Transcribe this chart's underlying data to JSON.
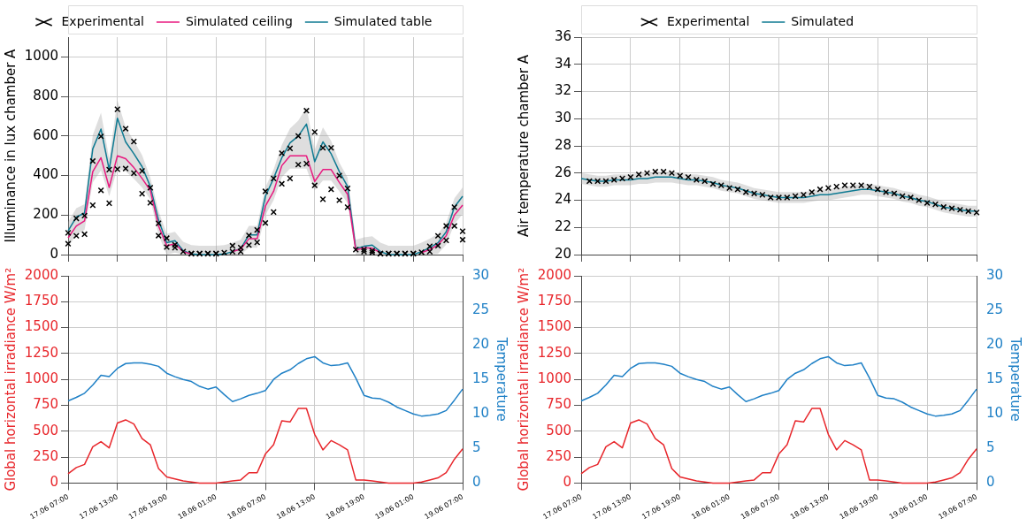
{
  "chart_data": [
    {
      "type": "line",
      "ylabel": "Illuminance in lux chamber A",
      "legend": "top",
      "grid": true,
      "tick_labels": "y",
      "x": [
        "--06-17T07:00",
        "--06-17T08:00",
        "--06-17T09:00",
        "--06-17T10:00",
        "--06-17T11:00",
        "--06-17T12:00",
        "--06-17T13:00",
        "--06-17T14:00",
        "--06-17T15:00",
        "--06-17T16:00",
        "--06-17T17:00",
        "--06-17T18:00",
        "--06-17T19:00",
        "--06-17T20:00",
        "--06-17T21:00",
        "--06-17T22:00",
        "--06-17T23:00",
        "--06-18T00:00",
        "--06-18T01:00",
        "--06-18T02:00",
        "--06-18T03:00",
        "--06-18T04:00",
        "--06-18T05:00",
        "--06-18T06:00",
        "--06-18T07:00",
        "--06-18T08:00",
        "--06-18T09:00",
        "--06-18T10:00",
        "--06-18T11:00",
        "--06-18T12:00",
        "--06-18T13:00",
        "--06-18T14:00",
        "--06-18T15:00",
        "--06-18T16:00",
        "--06-18T17:00",
        "--06-18T18:00",
        "--06-18T19:00",
        "--06-18T20:00",
        "--06-18T21:00",
        "--06-18T22:00",
        "--06-18T23:00",
        "--06-19T00:00",
        "--06-19T01:00",
        "--06-19T02:00",
        "--06-19T03:00",
        "--06-19T04:00",
        "--06-19T05:00",
        "--06-19T06:00",
        "--06-19T07:00"
      ],
      "xlim": [
        "--06-17T07:00",
        "--06-19T07:00"
      ],
      "xticks": [
        {
          "value": "--06-17T07:00",
          "label": null
        },
        {
          "value": "--06-17T13:00",
          "label": null
        },
        {
          "value": "--06-17T19:00",
          "label": null
        },
        {
          "value": "--06-18T01:00",
          "label": null
        },
        {
          "value": "--06-18T07:00",
          "label": null
        },
        {
          "value": "--06-18T13:00",
          "label": null
        },
        {
          "value": "--06-18T19:00",
          "label": null
        },
        {
          "value": "--06-19T01:00",
          "label": null
        },
        {
          "value": "--06-19T07:00",
          "label": null
        }
      ],
      "ylim": [
        0,
        1100
      ],
      "yticks": [
        0,
        200,
        400,
        600,
        800,
        1000
      ],
      "series": [
        {
          "name": "Experimental",
          "type": "scatter",
          "marker": "cross",
          "color": "#000000",
          "values": [
            110,
            183,
            197,
            473,
            598,
            430,
            735,
            637,
            572,
            423,
            338,
            158,
            83,
            50,
            15,
            5,
            5,
            5,
            5,
            10,
            45,
            35,
            97,
            125,
            320,
            385,
            513,
            537,
            600,
            728,
            620,
            540,
            540,
            400,
            335,
            25,
            25,
            20,
            5,
            5,
            5,
            5,
            5,
            12,
            42,
            95,
            145,
            240,
            118
          ]
        },
        {
          "type": "scatter",
          "marker": "cross",
          "color": "#000000",
          "values": [
            55,
            95,
            103,
            250,
            325,
            260,
            432,
            435,
            412,
            308,
            262,
            96,
            38,
            35,
            null,
            5,
            5,
            5,
            5,
            null,
            15,
            15,
            48,
            62,
            160,
            215,
            358,
            385,
            455,
            460,
            350,
            280,
            330,
            275,
            240,
            null,
            15,
            10,
            5,
            5,
            5,
            5,
            5,
            null,
            15,
            45,
            72,
            145,
            75
          ]
        },
        {
          "name": "Simulated ceiling",
          "type": "line",
          "color": "#e8197f",
          "values": [
            85,
            145,
            170,
            420,
            490,
            340,
            500,
            485,
            440,
            385,
            325,
            145,
            45,
            55,
            15,
            2,
            null,
            null,
            null,
            null,
            15,
            28,
            80,
            80,
            245,
            320,
            450,
            500,
            500,
            500,
            370,
            430,
            430,
            365,
            305,
            22,
            35,
            32,
            10,
            null,
            null,
            null,
            null,
            10,
            25,
            50,
            95,
            200,
            250
          ]
        },
        {
          "name": "Simulated table",
          "type": "line",
          "color": "#0e7a92",
          "values": [
            120,
            190,
            210,
            535,
            635,
            430,
            690,
            570,
            510,
            445,
            345,
            175,
            60,
            70,
            20,
            3,
            0,
            0,
            0,
            3,
            15,
            30,
            100,
            100,
            295,
            385,
            490,
            565,
            600,
            660,
            470,
            570,
            510,
            420,
            345,
            30,
            42,
            48,
            15,
            0,
            0,
            0,
            0,
            15,
            35,
            60,
            115,
            240,
            295
          ],
          "upper": [
            165,
            235,
            255,
            605,
            718,
            486,
            780,
            644,
            576,
            503,
            390,
            220,
            105,
            115,
            65,
            48,
            45,
            45,
            45,
            48,
            60,
            75,
            145,
            145,
            340,
            430,
            554,
            638,
            678,
            746,
            531,
            644,
            576,
            465,
            390,
            75,
            87,
            93,
            60,
            45,
            45,
            45,
            45,
            60,
            80,
            105,
            160,
            285,
            340
          ],
          "lower": [
            40,
            100,
            125,
            365,
            426,
            295,
            435,
            422,
            383,
            340,
            280,
            100,
            0,
            10,
            0,
            0,
            0,
            0,
            0,
            0,
            0,
            0,
            35,
            35,
            200,
            275,
            391,
            435,
            435,
            435,
            325,
            375,
            375,
            320,
            260,
            0,
            0,
            0,
            0,
            0,
            0,
            0,
            0,
            0,
            0,
            5,
            50,
            155,
            205
          ]
        }
      ]
    },
    {
      "type": "line",
      "ylabel": "Air temperature chamber A",
      "legend": "top",
      "grid": true,
      "tick_labels": "y",
      "x": [
        "--06-17T07:00",
        "--06-17T08:00",
        "--06-17T09:00",
        "--06-17T10:00",
        "--06-17T11:00",
        "--06-17T12:00",
        "--06-17T13:00",
        "--06-17T14:00",
        "--06-17T15:00",
        "--06-17T16:00",
        "--06-17T17:00",
        "--06-17T18:00",
        "--06-17T19:00",
        "--06-17T20:00",
        "--06-17T21:00",
        "--06-17T22:00",
        "--06-17T23:00",
        "--06-18T00:00",
        "--06-18T01:00",
        "--06-18T02:00",
        "--06-18T03:00",
        "--06-18T04:00",
        "--06-18T05:00",
        "--06-18T06:00",
        "--06-18T07:00",
        "--06-18T08:00",
        "--06-18T09:00",
        "--06-18T10:00",
        "--06-18T11:00",
        "--06-18T12:00",
        "--06-18T13:00",
        "--06-18T14:00",
        "--06-18T15:00",
        "--06-18T16:00",
        "--06-18T17:00",
        "--06-18T18:00",
        "--06-18T19:00",
        "--06-18T20:00",
        "--06-18T21:00",
        "--06-18T22:00",
        "--06-18T23:00",
        "--06-19T00:00",
        "--06-19T01:00",
        "--06-19T02:00",
        "--06-19T03:00",
        "--06-19T04:00",
        "--06-19T05:00",
        "--06-19T06:00",
        "--06-19T07:00"
      ],
      "xlim": [
        "--06-17T07:00",
        "--06-19T07:00"
      ],
      "xticks": [
        {
          "value": "--06-17T07:00",
          "label": null
        },
        {
          "value": "--06-17T13:00",
          "label": null
        },
        {
          "value": "--06-17T19:00",
          "label": null
        },
        {
          "value": "--06-18T01:00",
          "label": null
        },
        {
          "value": "--06-18T07:00",
          "label": null
        },
        {
          "value": "--06-18T13:00",
          "label": null
        },
        {
          "value": "--06-18T19:00",
          "label": null
        },
        {
          "value": "--06-19T01:00",
          "label": null
        },
        {
          "value": "--06-19T07:00",
          "label": null
        }
      ],
      "ylim": [
        20,
        36
      ],
      "yticks": [
        20,
        22,
        24,
        26,
        28,
        30,
        32,
        34,
        36
      ],
      "series": [
        {
          "name": "Experimental",
          "type": "scatter",
          "marker": "cross",
          "color": "#000000",
          "values": [
            null,
            25.4,
            25.4,
            25.4,
            25.5,
            25.6,
            25.7,
            25.9,
            26.0,
            26.1,
            26.1,
            26.0,
            25.8,
            25.7,
            25.5,
            25.4,
            25.2,
            25.1,
            24.9,
            24.8,
            24.6,
            24.5,
            24.4,
            24.2,
            24.2,
            24.2,
            24.3,
            24.4,
            24.6,
            24.8,
            24.9,
            25.0,
            25.1,
            25.1,
            25.1,
            25.0,
            24.8,
            24.6,
            24.5,
            24.3,
            24.2,
            24.0,
            23.8,
            23.7,
            23.5,
            23.4,
            23.3,
            23.2,
            23.1
          ]
        },
        {
          "name": "Simulated",
          "type": "line",
          "color": "#0e7a92",
          "values": [
            25.6,
            25.5,
            25.4,
            25.4,
            25.5,
            25.5,
            25.5,
            25.6,
            25.6,
            25.7,
            25.7,
            25.7,
            25.6,
            25.5,
            25.5,
            25.4,
            25.3,
            25.1,
            25.0,
            24.9,
            24.7,
            24.5,
            24.4,
            24.3,
            24.2,
            24.2,
            24.2,
            24.2,
            24.3,
            24.4,
            24.4,
            24.5,
            24.6,
            24.7,
            24.8,
            24.8,
            24.7,
            24.6,
            24.5,
            24.3,
            24.2,
            24.0,
            23.9,
            23.7,
            23.5,
            23.4,
            23.3,
            23.2,
            23.2
          ],
          "upper": [
            26.0,
            25.9,
            25.8,
            25.8,
            25.9,
            25.9,
            25.9,
            26.0,
            26.0,
            26.1,
            26.1,
            26.1,
            26.0,
            25.9,
            25.9,
            25.8,
            25.7,
            25.5,
            25.4,
            25.3,
            25.1,
            24.9,
            24.8,
            24.7,
            24.6,
            24.6,
            24.6,
            24.6,
            24.7,
            24.8,
            24.8,
            24.9,
            25.0,
            25.1,
            25.2,
            25.2,
            25.1,
            25.0,
            24.9,
            24.7,
            24.6,
            24.4,
            24.3,
            24.1,
            23.9,
            23.8,
            23.7,
            23.6,
            23.6
          ],
          "lower": [
            25.2,
            25.1,
            25.0,
            25.0,
            25.1,
            25.1,
            25.1,
            25.2,
            25.2,
            25.3,
            25.3,
            25.3,
            25.2,
            25.1,
            25.1,
            25.0,
            24.9,
            24.7,
            24.6,
            24.5,
            24.3,
            24.1,
            24.0,
            23.9,
            23.8,
            23.8,
            23.8,
            23.8,
            23.9,
            24.0,
            24.0,
            24.1,
            24.2,
            24.3,
            24.4,
            24.4,
            24.3,
            24.2,
            24.1,
            23.9,
            23.8,
            23.6,
            23.5,
            23.3,
            23.1,
            23.0,
            22.9,
            22.8,
            22.8
          ]
        }
      ]
    },
    {
      "type": "line",
      "ylabel": "Global horizontal irradiance W/m²",
      "y2label": "Temperature",
      "grid": true,
      "x": [
        "--06-17T07:00",
        "--06-17T08:00",
        "--06-17T09:00",
        "--06-17T10:00",
        "--06-17T11:00",
        "--06-17T12:00",
        "--06-17T13:00",
        "--06-17T14:00",
        "--06-17T15:00",
        "--06-17T16:00",
        "--06-17T17:00",
        "--06-17T18:00",
        "--06-17T19:00",
        "--06-17T20:00",
        "--06-17T21:00",
        "--06-17T22:00",
        "--06-17T23:00",
        "--06-18T00:00",
        "--06-18T01:00",
        "--06-18T02:00",
        "--06-18T03:00",
        "--06-18T04:00",
        "--06-18T05:00",
        "--06-18T06:00",
        "--06-18T07:00",
        "--06-18T08:00",
        "--06-18T09:00",
        "--06-18T10:00",
        "--06-18T11:00",
        "--06-18T12:00",
        "--06-18T13:00",
        "--06-18T14:00",
        "--06-18T15:00",
        "--06-18T16:00",
        "--06-18T17:00",
        "--06-18T18:00",
        "--06-18T19:00",
        "--06-18T20:00",
        "--06-18T21:00",
        "--06-18T22:00",
        "--06-18T23:00",
        "--06-19T00:00",
        "--06-19T01:00",
        "--06-19T02:00",
        "--06-19T03:00",
        "--06-19T04:00",
        "--06-19T05:00",
        "--06-19T06:00",
        "--06-19T07:00"
      ],
      "xlim": [
        "--06-17T07:00",
        "--06-19T07:00"
      ],
      "xticks": [
        {
          "value": "--06-17T07:00",
          "label": "17.06 07:00"
        },
        {
          "value": "--06-17T13:00",
          "label": "17.06 13:00"
        },
        {
          "value": "--06-17T19:00",
          "label": "17.06 19:00"
        },
        {
          "value": "--06-18T01:00",
          "label": "18.06 01:00"
        },
        {
          "value": "--06-18T07:00",
          "label": "18.06 07:00"
        },
        {
          "value": "--06-18T13:00",
          "label": "18.06 13:00"
        },
        {
          "value": "--06-18T19:00",
          "label": "18.06 19:00"
        },
        {
          "value": "--06-19T01:00",
          "label": "19.06 01:00"
        },
        {
          "value": "--06-19T07:00",
          "label": "19.06 07:00"
        }
      ],
      "ylim": [
        0,
        2000
      ],
      "yticks": [
        0,
        250,
        500,
        750,
        1000,
        1250,
        1500,
        1750,
        2000
      ],
      "y2lim": [
        0,
        30
      ],
      "y2ticks": [
        0,
        5,
        10,
        15,
        20,
        25,
        30
      ],
      "series": [
        {
          "type": "line",
          "color": "#e8262b",
          "values": [
            90,
            150,
            180,
            350,
            400,
            340,
            580,
            610,
            570,
            430,
            370,
            140,
            60,
            40,
            20,
            10,
            0,
            0,
            0,
            10,
            20,
            30,
            100,
            100,
            280,
            370,
            600,
            590,
            720,
            720,
            470,
            320,
            410,
            370,
            320,
            30,
            30,
            20,
            10,
            0,
            0,
            0,
            0,
            10,
            30,
            50,
            100,
            230,
            330
          ]
        },
        {
          "type": "line",
          "axis": "y2",
          "color": "#1f80c6",
          "values": [
            11.9,
            12.4,
            13.0,
            14.2,
            15.6,
            15.4,
            16.6,
            17.3,
            17.4,
            17.4,
            17.2,
            16.9,
            15.9,
            15.4,
            15.0,
            14.7,
            14.0,
            13.6,
            13.9,
            12.8,
            11.8,
            12.2,
            12.7,
            13.0,
            13.4,
            15.0,
            15.9,
            16.4,
            17.3,
            18.0,
            18.3,
            17.4,
            17.0,
            17.1,
            17.4,
            15.2,
            12.7,
            12.3,
            12.2,
            11.7,
            11.0,
            10.5,
            10.0,
            9.7,
            9.8,
            10.0,
            10.5,
            12.0,
            13.6
          ]
        }
      ]
    },
    {
      "type": "line",
      "ylabel": "Global horizontal irradiance W/m²",
      "y2label": "Temperature",
      "grid": true,
      "x": [
        "--06-17T07:00",
        "--06-17T08:00",
        "--06-17T09:00",
        "--06-17T10:00",
        "--06-17T11:00",
        "--06-17T12:00",
        "--06-17T13:00",
        "--06-17T14:00",
        "--06-17T15:00",
        "--06-17T16:00",
        "--06-17T17:00",
        "--06-17T18:00",
        "--06-17T19:00",
        "--06-17T20:00",
        "--06-17T21:00",
        "--06-17T22:00",
        "--06-17T23:00",
        "--06-18T00:00",
        "--06-18T01:00",
        "--06-18T02:00",
        "--06-18T03:00",
        "--06-18T04:00",
        "--06-18T05:00",
        "--06-18T06:00",
        "--06-18T07:00",
        "--06-18T08:00",
        "--06-18T09:00",
        "--06-18T10:00",
        "--06-18T11:00",
        "--06-18T12:00",
        "--06-18T13:00",
        "--06-18T14:00",
        "--06-18T15:00",
        "--06-18T16:00",
        "--06-18T17:00",
        "--06-18T18:00",
        "--06-18T19:00",
        "--06-18T20:00",
        "--06-18T21:00",
        "--06-18T22:00",
        "--06-18T23:00",
        "--06-19T00:00",
        "--06-19T01:00",
        "--06-19T02:00",
        "--06-19T03:00",
        "--06-19T04:00",
        "--06-19T05:00",
        "--06-19T06:00",
        "--06-19T07:00"
      ],
      "xlim": [
        "--06-17T07:00",
        "--06-19T07:00"
      ],
      "xticks": [
        {
          "value": "--06-17T07:00",
          "label": "17.06 07:00"
        },
        {
          "value": "--06-17T13:00",
          "label": "17.06 13:00"
        },
        {
          "value": "--06-17T19:00",
          "label": "17.06 19:00"
        },
        {
          "value": "--06-18T01:00",
          "label": "18.06 01:00"
        },
        {
          "value": "--06-18T07:00",
          "label": "18.06 07:00"
        },
        {
          "value": "--06-18T13:00",
          "label": "18.06 13:00"
        },
        {
          "value": "--06-18T19:00",
          "label": "18.06 19:00"
        },
        {
          "value": "--06-19T01:00",
          "label": "19.06 01:00"
        },
        {
          "value": "--06-19T07:00",
          "label": "19.06 07:00"
        }
      ],
      "ylim": [
        0,
        2000
      ],
      "yticks": [
        0,
        250,
        500,
        750,
        1000,
        1250,
        1500,
        1750,
        2000
      ],
      "y2lim": [
        0,
        30
      ],
      "y2ticks": [
        0,
        5,
        10,
        15,
        20,
        25,
        30
      ],
      "series": [
        {
          "type": "line",
          "color": "#e8262b",
          "values": [
            90,
            150,
            180,
            350,
            400,
            340,
            580,
            610,
            570,
            430,
            370,
            140,
            60,
            40,
            20,
            10,
            0,
            0,
            0,
            10,
            20,
            30,
            100,
            100,
            280,
            370,
            600,
            590,
            720,
            720,
            470,
            320,
            410,
            370,
            320,
            30,
            30,
            20,
            10,
            0,
            0,
            0,
            0,
            10,
            30,
            50,
            100,
            230,
            330
          ]
        },
        {
          "type": "line",
          "axis": "y2",
          "color": "#1f80c6",
          "values": [
            11.9,
            12.4,
            13.0,
            14.2,
            15.6,
            15.4,
            16.6,
            17.3,
            17.4,
            17.4,
            17.2,
            16.9,
            15.9,
            15.4,
            15.0,
            14.7,
            14.0,
            13.6,
            13.9,
            12.8,
            11.8,
            12.2,
            12.7,
            13.0,
            13.4,
            15.0,
            15.9,
            16.4,
            17.3,
            18.0,
            18.3,
            17.4,
            17.0,
            17.1,
            17.4,
            15.2,
            12.7,
            12.3,
            12.2,
            11.7,
            11.0,
            10.5,
            10.0,
            9.7,
            9.8,
            10.0,
            10.5,
            12.0,
            13.6
          ]
        }
      ]
    }
  ]
}
